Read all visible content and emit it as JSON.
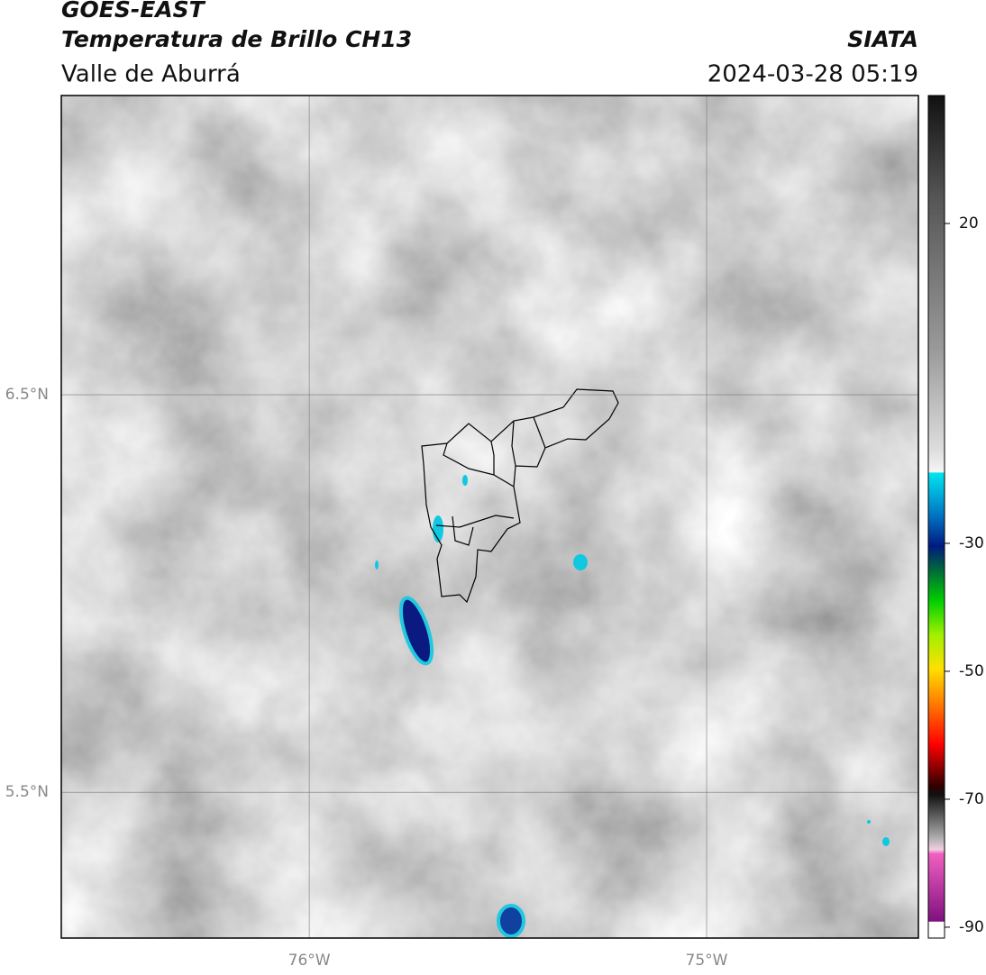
{
  "header": {
    "title": "GOES-EAST",
    "subtitle": "Temperatura de Brillo CH13",
    "region": "Valle de Aburrá",
    "source": "SIATA",
    "datetime": "2024-03-28 05:19"
  },
  "map": {
    "xlim": [
      -76.624,
      -74.467
    ],
    "ylim": [
      5.133,
      7.253
    ],
    "xticks": [
      {
        "value": -76,
        "label": "76°W"
      },
      {
        "value": -75,
        "label": "75°W"
      }
    ],
    "yticks": [
      {
        "value": 6.5,
        "label": "6.5°N"
      },
      {
        "value": 5.5,
        "label": "5.5°N"
      }
    ],
    "grid": true
  },
  "colorbar": {
    "lim": [
      -91.7,
      40
    ],
    "ticks": [
      20,
      -30,
      -50,
      -70,
      -90
    ]
  }
}
